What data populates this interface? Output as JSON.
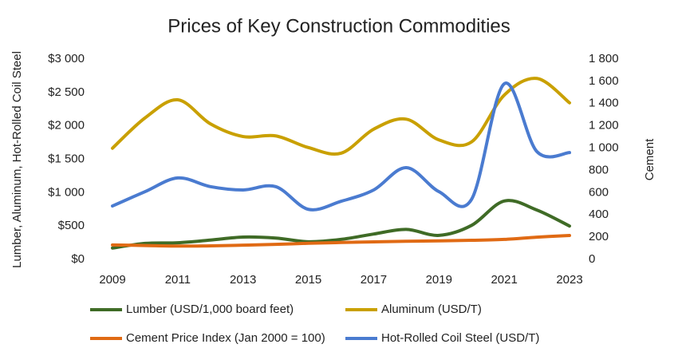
{
  "chart_data": {
    "type": "line",
    "title": "Prices of Key Construction Commodities",
    "y_label": "Lumber, Aluminum, Hot-Rolled Coil Steel",
    "y2_label": "Cement",
    "x": [
      2009,
      2010,
      2011,
      2012,
      2013,
      2014,
      2015,
      2016,
      2017,
      2018,
      2019,
      2020,
      2021,
      2022,
      2023
    ],
    "xlim": [
      2009,
      2023
    ],
    "xticks": [
      2009,
      2011,
      2013,
      2015,
      2017,
      2019,
      2021,
      2023
    ],
    "ylim": [
      0,
      3000
    ],
    "yticks": [
      {
        "value": 0,
        "label": "$0"
      },
      {
        "value": 500,
        "label": "$500"
      },
      {
        "value": 1000,
        "label": "$1 000"
      },
      {
        "value": 1500,
        "label": "$1 500"
      },
      {
        "value": 2000,
        "label": "$2 000"
      },
      {
        "value": 2500,
        "label": "$2 500"
      },
      {
        "value": 3000,
        "label": "$3 000"
      }
    ],
    "y2lim": [
      0,
      1800
    ],
    "y2ticks": [
      0,
      200,
      400,
      600,
      800,
      {
        "value": 1000,
        "label": "1 000"
      },
      {
        "value": 1200,
        "label": "1 200"
      },
      {
        "value": 1400,
        "label": "1 400"
      },
      {
        "value": 1600,
        "label": "1 600"
      },
      {
        "value": 1800,
        "label": "1 800"
      }
    ],
    "smooth": true,
    "series": [
      {
        "name": "Lumber (USD/1,000 board feet)",
        "color": "#3f6b26",
        "values": [
          170,
          240,
          250,
          290,
          335,
          320,
          265,
          300,
          380,
          450,
          360,
          510,
          875,
          740,
          500
        ]
      },
      {
        "name": "Aluminum (USD/T)",
        "color": "#c9a000",
        "values": [
          1665,
          2120,
          2390,
          2030,
          1840,
          1850,
          1675,
          1590,
          1950,
          2100,
          1790,
          1760,
          2460,
          2710,
          2345
        ]
      },
      {
        "name": "Cement Price Index (Jan 2000 = 100)",
        "color": "#e06a14",
        "axis": "y2",
        "values": [
          130,
          125,
          120,
          122,
          128,
          135,
          145,
          152,
          158,
          163,
          167,
          172,
          180,
          200,
          215
        ]
      },
      {
        "name": "Hot-Rolled Coil Steel (USD/T)",
        "color": "#4a7bd0",
        "values": [
          800,
          1015,
          1220,
          1090,
          1040,
          1090,
          750,
          870,
          1040,
          1375,
          1015,
          900,
          2630,
          1615,
          1600
        ]
      }
    ]
  }
}
